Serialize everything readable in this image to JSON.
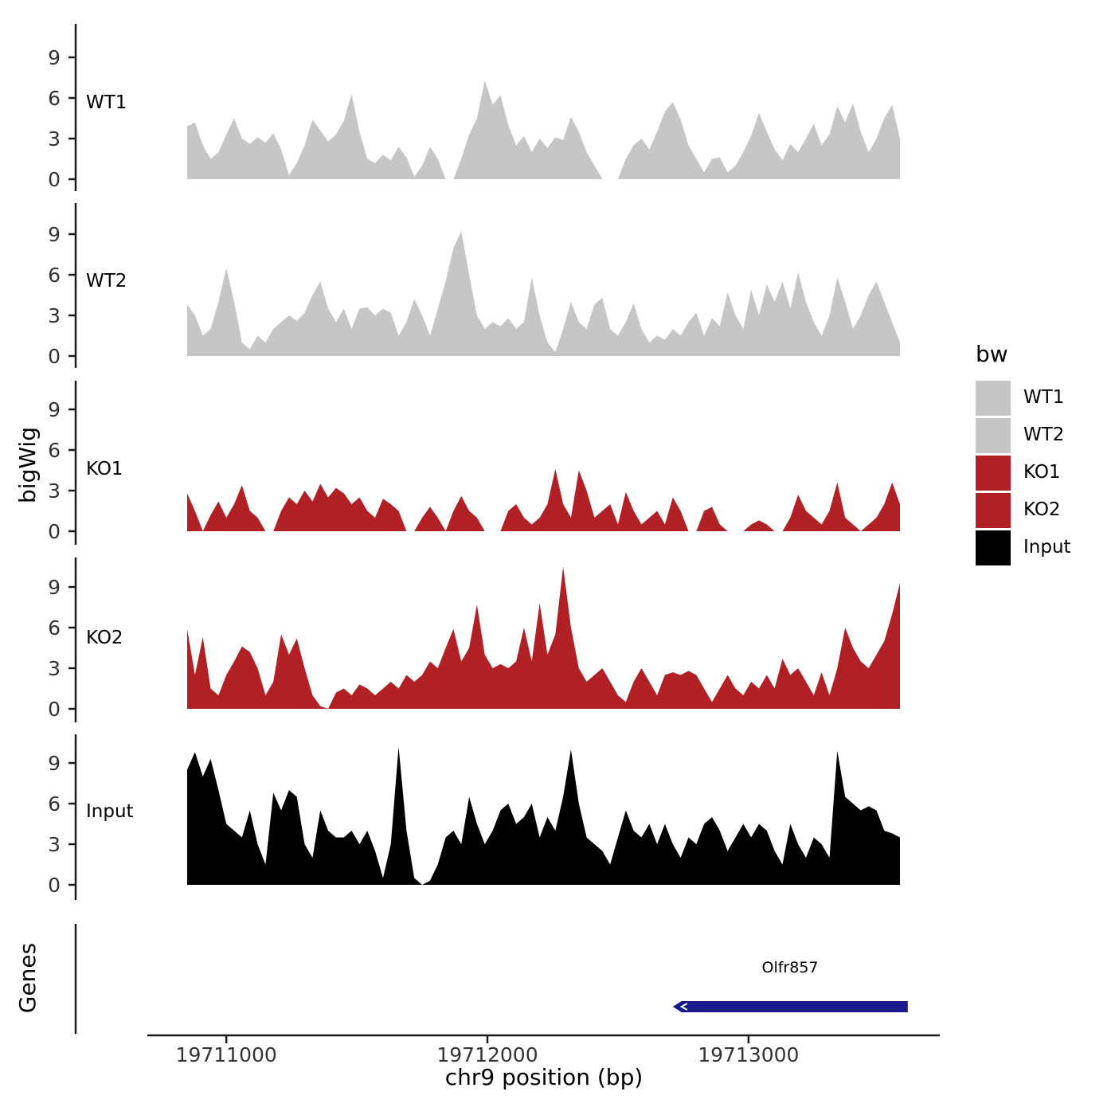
{
  "axes": {
    "x_label": "chr9 position (bp)",
    "y_label": "bigWig",
    "genes_label": "Genes",
    "x_ticks": [
      19711000,
      19712000,
      19713000
    ],
    "x_tick_labels": [
      "19711000",
      "19712000",
      "19713000"
    ],
    "y_ticks": [
      0,
      3,
      6,
      9
    ]
  },
  "legend": {
    "title": "bw",
    "entries": [
      {
        "label": "WT1",
        "color": "#c6c6c6"
      },
      {
        "label": "WT2",
        "color": "#c6c6c6"
      },
      {
        "label": "KO1",
        "color": "#b02025"
      },
      {
        "label": "KO2",
        "color": "#b02025"
      },
      {
        "label": "Input",
        "color": "#000000"
      }
    ]
  },
  "gene": {
    "name": "Olfr857",
    "start_bp": 19712710,
    "end_bp": 19713610,
    "strand": "-",
    "color": "#1A1A8F"
  },
  "chart_data": {
    "type": "area",
    "title": "",
    "xlabel": "chr9 position (bp)",
    "ylabel": "bigWig",
    "x_range": [
      19710850,
      19713580
    ],
    "sample_step_bp": 30,
    "x_tick_values": [
      19711000,
      19712000,
      19713000
    ],
    "y_tick_values": [
      0,
      3,
      6,
      9
    ],
    "ylim": [
      0,
      11.5
    ],
    "legend_position": "right",
    "grid": false,
    "tracks": [
      {
        "name": "WT1",
        "color": "#c6c6c6",
        "values": [
          3.9,
          4.2,
          2.5,
          1.5,
          2.0,
          3.3,
          4.5,
          3.0,
          2.6,
          3.1,
          2.7,
          3.4,
          2.2,
          0.3,
          1.2,
          2.5,
          4.4,
          3.6,
          2.8,
          3.3,
          4.3,
          6.3,
          3.5,
          1.5,
          1.2,
          1.8,
          1.4,
          2.4,
          1.6,
          0.2,
          1.0,
          2.4,
          1.5,
          0.0,
          0.0,
          1.5,
          3.3,
          4.5,
          7.3,
          5.5,
          6.2,
          4.0,
          2.5,
          3.2,
          2.0,
          3.0,
          2.3,
          3.1,
          2.9,
          4.6,
          3.5,
          2.0,
          1.0,
          0.0,
          0.0,
          0.0,
          1.5,
          2.5,
          3.0,
          2.2,
          3.5,
          5.0,
          5.7,
          4.4,
          2.5,
          1.5,
          0.5,
          1.5,
          1.6,
          0.5,
          1.0,
          2.0,
          3.2,
          4.9,
          3.5,
          2.2,
          1.4,
          2.6,
          2.0,
          3.0,
          4.1,
          2.5,
          3.3,
          5.4,
          4.2,
          5.6,
          3.5,
          2.0,
          3.0,
          4.5,
          5.5,
          3.0
        ]
      },
      {
        "name": "WT2",
        "color": "#c6c6c6",
        "values": [
          3.8,
          3.0,
          1.5,
          2.0,
          4.0,
          6.5,
          4.0,
          1.0,
          0.5,
          1.5,
          1.0,
          2.0,
          2.5,
          3.0,
          2.6,
          3.2,
          4.5,
          5.5,
          3.5,
          2.5,
          3.5,
          2.0,
          3.5,
          3.6,
          3.0,
          3.5,
          3.2,
          1.5,
          2.5,
          4.2,
          3.0,
          1.5,
          3.5,
          5.5,
          8.0,
          9.2,
          6.0,
          3.0,
          2.0,
          2.5,
          2.2,
          2.8,
          2.0,
          2.5,
          5.8,
          3.0,
          1.0,
          0.3,
          2.0,
          4.0,
          2.5,
          2.0,
          3.8,
          4.3,
          2.0,
          1.5,
          2.5,
          3.9,
          2.0,
          1.0,
          1.5,
          1.2,
          2.0,
          1.5,
          2.5,
          3.2,
          1.5,
          2.8,
          2.2,
          4.7,
          3.0,
          2.0,
          4.9,
          3.0,
          5.3,
          4.0,
          5.5,
          3.5,
          6.2,
          4.0,
          2.5,
          1.5,
          3.0,
          5.8,
          4.0,
          2.0,
          3.0,
          4.5,
          5.5,
          4.0,
          2.5,
          1.0
        ]
      },
      {
        "name": "KO1",
        "color": "#b02025",
        "values": [
          2.8,
          1.5,
          0.0,
          1.2,
          2.2,
          1.0,
          2.0,
          3.4,
          1.5,
          1.0,
          0.0,
          0.0,
          1.5,
          2.5,
          2.0,
          3.0,
          2.2,
          3.5,
          2.5,
          3.2,
          2.8,
          2.0,
          2.5,
          1.5,
          1.0,
          2.4,
          2.0,
          1.5,
          0.0,
          0.0,
          1.0,
          1.8,
          1.0,
          0.0,
          1.5,
          2.6,
          1.5,
          1.0,
          0.0,
          0.0,
          0.0,
          1.5,
          2.0,
          1.0,
          0.5,
          1.0,
          2.0,
          4.6,
          2.0,
          1.0,
          4.5,
          3.0,
          1.0,
          1.5,
          2.0,
          0.5,
          2.9,
          1.5,
          0.5,
          1.0,
          1.5,
          0.5,
          2.5,
          1.5,
          0.0,
          0.0,
          1.5,
          1.8,
          0.5,
          0.0,
          0.0,
          0.0,
          0.5,
          0.8,
          0.5,
          0.0,
          0.0,
          1.0,
          2.7,
          1.5,
          1.0,
          0.5,
          1.5,
          3.6,
          1.0,
          0.5,
          0.0,
          0.5,
          1.0,
          2.0,
          3.6,
          2.0
        ]
      },
      {
        "name": "KO2",
        "color": "#b02025",
        "values": [
          5.9,
          2.5,
          5.3,
          1.5,
          1.0,
          2.5,
          3.5,
          4.6,
          4.2,
          3.0,
          1.0,
          2.0,
          5.5,
          4.0,
          5.2,
          3.0,
          1.0,
          0.2,
          0.0,
          1.2,
          1.5,
          1.0,
          1.8,
          1.5,
          1.0,
          1.5,
          2.0,
          1.5,
          2.5,
          2.0,
          2.5,
          3.5,
          3.0,
          4.5,
          5.9,
          3.5,
          4.5,
          7.7,
          4.0,
          3.0,
          3.3,
          3.0,
          3.5,
          6.0,
          3.5,
          7.8,
          4.0,
          5.5,
          10.5,
          6.0,
          3.0,
          2.0,
          2.5,
          3.0,
          2.0,
          1.0,
          0.5,
          2.0,
          3.0,
          2.0,
          1.0,
          2.5,
          2.7,
          2.5,
          2.8,
          2.5,
          1.5,
          0.5,
          1.5,
          2.5,
          1.5,
          1.0,
          2.0,
          1.5,
          2.5,
          1.5,
          3.7,
          2.5,
          3.0,
          2.0,
          1.0,
          2.7,
          1.0,
          3.0,
          6.0,
          4.5,
          3.5,
          3.0,
          4.0,
          5.0,
          7.0,
          9.3
        ]
      },
      {
        "name": "Input",
        "color": "#000000",
        "values": [
          8.5,
          9.8,
          8.0,
          9.3,
          7.0,
          4.5,
          4.0,
          3.5,
          5.5,
          3.0,
          1.5,
          6.8,
          5.5,
          7.0,
          6.5,
          3.0,
          2.0,
          5.5,
          4.0,
          3.5,
          3.5,
          4.0,
          3.0,
          4.0,
          2.5,
          0.5,
          3.0,
          10.2,
          4.0,
          0.5,
          0.0,
          0.3,
          1.5,
          3.5,
          4.0,
          3.0,
          6.5,
          4.5,
          3.0,
          4.0,
          5.5,
          6.0,
          4.5,
          5.0,
          6.0,
          3.5,
          5.0,
          4.0,
          6.5,
          10.0,
          6.0,
          3.5,
          3.0,
          2.5,
          1.5,
          3.5,
          5.5,
          4.0,
          3.5,
          4.5,
          3.0,
          4.5,
          3.0,
          2.0,
          3.5,
          3.0,
          4.5,
          5.0,
          4.0,
          2.5,
          3.5,
          4.5,
          3.5,
          4.5,
          4.0,
          2.5,
          1.5,
          4.5,
          3.0,
          2.0,
          3.5,
          3.0,
          2.0,
          9.9,
          6.5,
          6.0,
          5.5,
          5.8,
          5.5,
          4.0,
          3.8,
          3.5
        ]
      }
    ]
  }
}
